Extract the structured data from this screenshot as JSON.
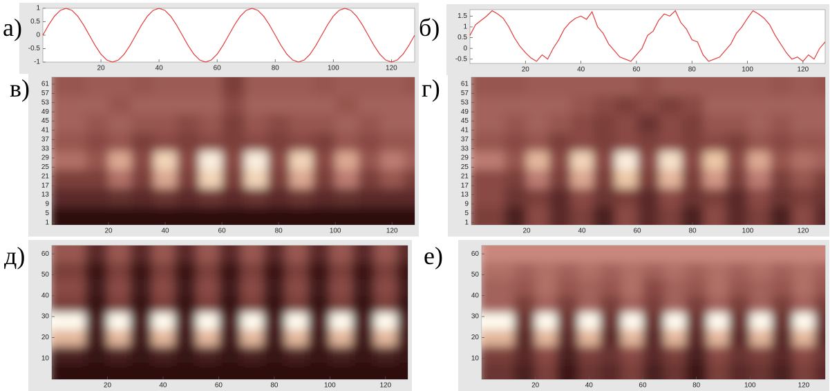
{
  "chart_data": [
    {
      "type": "line",
      "label": "а)",
      "color": "#e23a3a",
      "xlim": [
        0,
        128
      ],
      "ylim": [
        -1,
        1
      ],
      "xticks": [
        20,
        40,
        60,
        80,
        100,
        120
      ],
      "yticks": [
        -1,
        -0.5,
        0,
        0.5,
        1
      ],
      "x": [
        0,
        2,
        4,
        6,
        8,
        10,
        12,
        14,
        16,
        18,
        20,
        22,
        24,
        26,
        28,
        30,
        32,
        34,
        36,
        38,
        40,
        42,
        44,
        46,
        48,
        50,
        52,
        54,
        56,
        58,
        60,
        62,
        64,
        66,
        68,
        70,
        72,
        74,
        76,
        78,
        80,
        82,
        84,
        86,
        88,
        90,
        92,
        94,
        96,
        98,
        100,
        102,
        104,
        106,
        108,
        110,
        112,
        114,
        116,
        118,
        120,
        122,
        124,
        126,
        128
      ],
      "values": [
        0,
        0.383,
        0.707,
        0.924,
        1,
        0.924,
        0.707,
        0.383,
        0,
        -0.383,
        -0.707,
        -0.924,
        -1,
        -0.924,
        -0.707,
        -0.383,
        0,
        0.383,
        0.707,
        0.924,
        1,
        0.924,
        0.707,
        0.383,
        0,
        -0.383,
        -0.707,
        -0.924,
        -1,
        -0.924,
        -0.707,
        -0.383,
        0,
        0.383,
        0.707,
        0.924,
        1,
        0.924,
        0.707,
        0.383,
        0,
        -0.383,
        -0.707,
        -0.924,
        -1,
        -0.924,
        -0.707,
        -0.383,
        0,
        0.383,
        0.707,
        0.924,
        1,
        0.924,
        0.707,
        0.383,
        0,
        -0.383,
        -0.707,
        -0.924,
        -1,
        -0.924,
        -0.707,
        -0.383,
        0
      ]
    },
    {
      "type": "line",
      "label": "б)",
      "color": "#e23a3a",
      "xlim": [
        0,
        128
      ],
      "ylim": [
        -0.7,
        1.8
      ],
      "xticks": [
        20,
        40,
        60,
        80,
        100,
        120
      ],
      "yticks": [
        -0.5,
        0,
        0.5,
        1,
        1.5
      ],
      "x": [
        0,
        2,
        4,
        6,
        8,
        10,
        12,
        14,
        16,
        18,
        20,
        22,
        24,
        26,
        28,
        30,
        32,
        34,
        36,
        38,
        40,
        42,
        44,
        46,
        48,
        50,
        52,
        54,
        56,
        58,
        60,
        62,
        64,
        66,
        68,
        70,
        72,
        74,
        76,
        78,
        80,
        82,
        84,
        86,
        88,
        90,
        92,
        94,
        96,
        98,
        100,
        102,
        104,
        106,
        108,
        110,
        112,
        114,
        116,
        118,
        120,
        122,
        124,
        126,
        128
      ],
      "values": [
        0.6,
        1.1,
        1.3,
        1.5,
        1.75,
        1.6,
        1.4,
        1.0,
        0.5,
        0.1,
        -0.2,
        -0.45,
        -0.6,
        -0.3,
        -0.5,
        0.0,
        0.4,
        0.9,
        1.2,
        1.4,
        1.5,
        1.35,
        1.7,
        1.0,
        0.7,
        0.2,
        -0.1,
        -0.4,
        -0.5,
        -0.6,
        -0.3,
        0.0,
        0.6,
        0.8,
        1.3,
        1.6,
        1.5,
        1.75,
        1.2,
        0.9,
        0.4,
        0.3,
        -0.3,
        -0.6,
        -0.5,
        -0.4,
        -0.1,
        0.2,
        0.7,
        1.0,
        1.4,
        1.75,
        1.6,
        1.4,
        1.1,
        0.6,
        0.2,
        -0.2,
        -0.5,
        -0.4,
        -0.6,
        -0.3,
        -0.5,
        0.0,
        0.3
      ]
    },
    {
      "type": "heatmap",
      "label": "в)",
      "xlim": [
        0,
        128
      ],
      "ylim": [
        0,
        64
      ],
      "xticks": [
        20,
        40,
        60,
        80,
        100,
        120
      ],
      "yticks": [
        1,
        5,
        9,
        13,
        17,
        21,
        25,
        29,
        33,
        37,
        41,
        45,
        49,
        53,
        57,
        61
      ],
      "x": [
        8,
        16,
        24,
        32,
        40,
        48,
        56,
        64,
        72,
        80,
        88,
        96,
        104,
        112,
        120,
        128
      ],
      "y": [
        4,
        12,
        20,
        28,
        36,
        44,
        52,
        60
      ],
      "z": [
        [
          0.05,
          0.05,
          0.05,
          0.05,
          0.05,
          0.05,
          0.05,
          0.05,
          0.05,
          0.05,
          0.05,
          0.05,
          0.05,
          0.05,
          0.05,
          0.05
        ],
        [
          0.2,
          0.2,
          0.22,
          0.2,
          0.25,
          0.2,
          0.25,
          0.2,
          0.25,
          0.2,
          0.25,
          0.2,
          0.22,
          0.2,
          0.2,
          0.2
        ],
        [
          0.3,
          0.3,
          0.5,
          0.3,
          0.7,
          0.3,
          0.85,
          0.3,
          0.85,
          0.3,
          0.7,
          0.3,
          0.55,
          0.3,
          0.4,
          0.3
        ],
        [
          0.5,
          0.4,
          0.7,
          0.35,
          0.85,
          0.35,
          0.95,
          0.35,
          0.95,
          0.35,
          0.85,
          0.35,
          0.7,
          0.4,
          0.55,
          0.45
        ],
        [
          0.4,
          0.35,
          0.4,
          0.3,
          0.35,
          0.3,
          0.35,
          0.3,
          0.35,
          0.3,
          0.35,
          0.3,
          0.4,
          0.35,
          0.4,
          0.4
        ],
        [
          0.45,
          0.4,
          0.45,
          0.4,
          0.4,
          0.35,
          0.4,
          0.3,
          0.4,
          0.35,
          0.4,
          0.4,
          0.45,
          0.4,
          0.45,
          0.45
        ],
        [
          0.45,
          0.45,
          0.4,
          0.45,
          0.45,
          0.45,
          0.45,
          0.35,
          0.45,
          0.45,
          0.45,
          0.45,
          0.4,
          0.45,
          0.45,
          0.45
        ],
        [
          0.4,
          0.42,
          0.42,
          0.4,
          0.42,
          0.42,
          0.42,
          0.3,
          0.42,
          0.42,
          0.42,
          0.4,
          0.42,
          0.42,
          0.42,
          0.4
        ]
      ]
    },
    {
      "type": "heatmap",
      "label": "г)",
      "xlim": [
        0,
        128
      ],
      "ylim": [
        0,
        64
      ],
      "xticks": [
        20,
        40,
        60,
        80,
        100,
        120
      ],
      "yticks": [
        1,
        5,
        9,
        13,
        17,
        21,
        25,
        29,
        33,
        37,
        41,
        45,
        49,
        53,
        57,
        61
      ],
      "x": [
        8,
        16,
        24,
        32,
        40,
        48,
        56,
        64,
        72,
        80,
        88,
        96,
        104,
        112,
        120,
        128
      ],
      "y": [
        4,
        12,
        20,
        28,
        36,
        44,
        52,
        60
      ],
      "z": [
        [
          0.3,
          0.15,
          0.35,
          0.2,
          0.3,
          0.15,
          0.35,
          0.2,
          0.3,
          0.15,
          0.35,
          0.2,
          0.3,
          0.15,
          0.35,
          0.2
        ],
        [
          0.35,
          0.25,
          0.3,
          0.2,
          0.35,
          0.25,
          0.3,
          0.2,
          0.35,
          0.25,
          0.3,
          0.2,
          0.35,
          0.25,
          0.3,
          0.25
        ],
        [
          0.35,
          0.3,
          0.55,
          0.3,
          0.7,
          0.3,
          0.8,
          0.3,
          0.75,
          0.3,
          0.65,
          0.3,
          0.55,
          0.3,
          0.4,
          0.3
        ],
        [
          0.55,
          0.4,
          0.75,
          0.35,
          0.85,
          0.35,
          0.95,
          0.35,
          0.9,
          0.35,
          0.8,
          0.35,
          0.7,
          0.4,
          0.5,
          0.45
        ],
        [
          0.4,
          0.35,
          0.4,
          0.3,
          0.35,
          0.3,
          0.35,
          0.3,
          0.35,
          0.3,
          0.35,
          0.3,
          0.4,
          0.35,
          0.4,
          0.4
        ],
        [
          0.45,
          0.4,
          0.45,
          0.4,
          0.35,
          0.3,
          0.35,
          0.25,
          0.35,
          0.3,
          0.4,
          0.4,
          0.45,
          0.4,
          0.45,
          0.45
        ],
        [
          0.45,
          0.45,
          0.45,
          0.45,
          0.4,
          0.35,
          0.3,
          0.35,
          0.3,
          0.35,
          0.45,
          0.45,
          0.45,
          0.45,
          0.45,
          0.45
        ],
        [
          0.4,
          0.4,
          0.42,
          0.42,
          0.42,
          0.42,
          0.42,
          0.38,
          0.42,
          0.42,
          0.42,
          0.42,
          0.42,
          0.4,
          0.42,
          0.4
        ]
      ]
    },
    {
      "type": "heatmap",
      "label": "д)",
      "xlim": [
        0,
        128
      ],
      "ylim": [
        0,
        64
      ],
      "xticks": [
        20,
        40,
        60,
        80,
        100,
        120
      ],
      "yticks": [
        10,
        20,
        30,
        40,
        50,
        60
      ],
      "x": [
        8,
        16,
        24,
        32,
        40,
        48,
        56,
        64,
        72,
        80,
        88,
        96,
        104,
        112,
        120,
        128
      ],
      "y": [
        4,
        12,
        20,
        28,
        36,
        44,
        52,
        60
      ],
      "z": [
        [
          0.05,
          0.05,
          0.05,
          0.05,
          0.05,
          0.05,
          0.05,
          0.05,
          0.05,
          0.05,
          0.05,
          0.05,
          0.05,
          0.05,
          0.05,
          0.05
        ],
        [
          0.15,
          0.08,
          0.15,
          0.08,
          0.15,
          0.08,
          0.15,
          0.08,
          0.15,
          0.08,
          0.15,
          0.08,
          0.15,
          0.08,
          0.15,
          0.08
        ],
        [
          0.75,
          0.12,
          0.75,
          0.12,
          0.75,
          0.12,
          0.75,
          0.12,
          0.75,
          0.12,
          0.75,
          0.12,
          0.75,
          0.12,
          0.75,
          0.12
        ],
        [
          1,
          0.15,
          1,
          0.15,
          1,
          0.15,
          1,
          0.15,
          1,
          0.15,
          1,
          0.15,
          1,
          0.15,
          1,
          0.15
        ],
        [
          0.3,
          0.08,
          0.3,
          0.08,
          0.3,
          0.08,
          0.3,
          0.08,
          0.3,
          0.08,
          0.3,
          0.08,
          0.3,
          0.08,
          0.3,
          0.08
        ],
        [
          0.35,
          0.12,
          0.35,
          0.12,
          0.35,
          0.12,
          0.35,
          0.12,
          0.35,
          0.12,
          0.35,
          0.12,
          0.35,
          0.12,
          0.35,
          0.12
        ],
        [
          0.3,
          0.1,
          0.3,
          0.1,
          0.3,
          0.1,
          0.3,
          0.1,
          0.3,
          0.1,
          0.3,
          0.1,
          0.3,
          0.1,
          0.3,
          0.1
        ],
        [
          0.4,
          0.2,
          0.4,
          0.2,
          0.4,
          0.2,
          0.4,
          0.2,
          0.4,
          0.2,
          0.4,
          0.2,
          0.4,
          0.2,
          0.4,
          0.2
        ]
      ]
    },
    {
      "type": "heatmap",
      "label": "е)",
      "xlim": [
        0,
        128
      ],
      "ylim": [
        0,
        64
      ],
      "xticks": [
        20,
        40,
        60,
        80,
        100,
        120
      ],
      "yticks": [
        10,
        20,
        30,
        40,
        50,
        60
      ],
      "x": [
        8,
        16,
        24,
        32,
        40,
        48,
        56,
        64,
        72,
        80,
        88,
        96,
        104,
        112,
        120,
        128
      ],
      "y": [
        4,
        12,
        20,
        28,
        36,
        44,
        52,
        60
      ],
      "z": [
        [
          0.25,
          0.15,
          0.3,
          0.1,
          0.25,
          0.2,
          0.3,
          0.15,
          0.25,
          0.1,
          0.3,
          0.2,
          0.25,
          0.15,
          0.3,
          0.2
        ],
        [
          0.3,
          0.2,
          0.35,
          0.15,
          0.3,
          0.25,
          0.35,
          0.2,
          0.3,
          0.15,
          0.35,
          0.25,
          0.3,
          0.2,
          0.35,
          0.25
        ],
        [
          0.75,
          0.2,
          0.75,
          0.2,
          0.75,
          0.2,
          0.75,
          0.2,
          0.75,
          0.2,
          0.75,
          0.2,
          0.75,
          0.2,
          0.75,
          0.2
        ],
        [
          1,
          0.25,
          1,
          0.25,
          1,
          0.25,
          1,
          0.25,
          1,
          0.25,
          1,
          0.25,
          1,
          0.25,
          1,
          0.25
        ],
        [
          0.45,
          0.3,
          0.45,
          0.3,
          0.45,
          0.3,
          0.45,
          0.3,
          0.45,
          0.3,
          0.45,
          0.3,
          0.45,
          0.3,
          0.45,
          0.3
        ],
        [
          0.45,
          0.4,
          0.5,
          0.4,
          0.45,
          0.4,
          0.5,
          0.35,
          0.45,
          0.4,
          0.5,
          0.4,
          0.45,
          0.4,
          0.5,
          0.4
        ],
        [
          0.5,
          0.45,
          0.5,
          0.45,
          0.5,
          0.45,
          0.5,
          0.45,
          0.5,
          0.45,
          0.5,
          0.45,
          0.5,
          0.45,
          0.5,
          0.45
        ],
        [
          0.6,
          0.6,
          0.6,
          0.6,
          0.6,
          0.6,
          0.6,
          0.6,
          0.6,
          0.6,
          0.6,
          0.6,
          0.6,
          0.6,
          0.6,
          0.6
        ]
      ]
    }
  ]
}
